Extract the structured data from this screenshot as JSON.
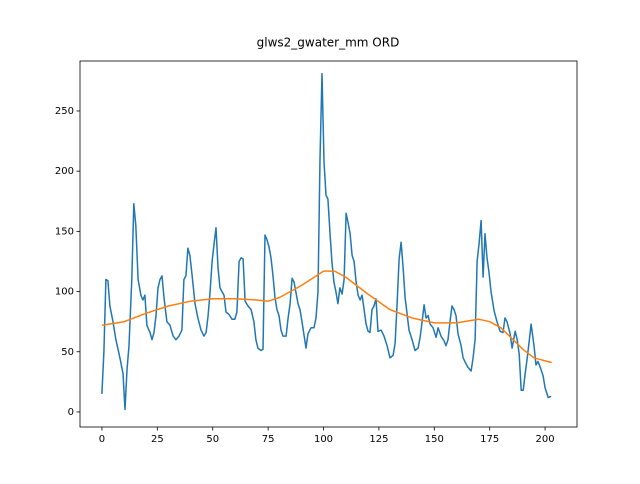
{
  "chart_data": {
    "type": "line",
    "title": "glws2_gwater_mm ORD",
    "xlim": [
      -9.9,
      214.4
    ],
    "ylim": [
      -12.5,
      291.5
    ],
    "xticks": [
      0,
      25,
      50,
      75,
      100,
      125,
      150,
      175,
      200
    ],
    "yticks": [
      0,
      50,
      100,
      150,
      200,
      250
    ],
    "series": [
      {
        "color": "#1f77b4",
        "x": [
          0,
          0.9,
          1.8,
          2.7,
          3.6,
          5.0,
          6.3,
          8.1,
          9.5,
          10.4,
          11.3,
          12.2,
          13.5,
          14.4,
          15.3,
          16.3,
          17.6,
          18.5,
          19.4,
          20.3,
          21.7,
          22.6,
          23.5,
          24.4,
          25.3,
          26.2,
          27.1,
          28.0,
          29.3,
          30.7,
          32.1,
          33.4,
          34.8,
          36.1,
          37.0,
          37.9,
          38.8,
          39.7,
          40.6,
          42.0,
          43.3,
          44.7,
          46.0,
          47.0,
          47.9,
          48.8,
          49.7,
          50.6,
          51.5,
          52.4,
          53.3,
          54.2,
          55.1,
          56.0,
          57.3,
          58.7,
          60.0,
          60.9,
          61.9,
          62.8,
          63.7,
          64.6,
          65.9,
          67.3,
          68.6,
          69.5,
          70.4,
          71.8,
          72.7,
          73.6,
          74.5,
          75.4,
          76.3,
          77.2,
          78.1,
          79.0,
          79.9,
          80.8,
          81.7,
          83.1,
          84.0,
          84.9,
          85.8,
          86.7,
          87.6,
          88.5,
          89.4,
          90.3,
          91.2,
          92.1,
          93.0,
          94.4,
          95.7,
          96.6,
          97.5,
          98.4,
          99.3,
          100.2,
          101.1,
          102.0,
          102.9,
          103.8,
          104.7,
          105.6,
          106.5,
          107.4,
          108.4,
          109.3,
          110.2,
          111.1,
          112.0,
          112.9,
          113.8,
          114.7,
          115.6,
          116.5,
          117.4,
          118.3,
          119.2,
          120.1,
          121.0,
          121.9,
          122.8,
          123.7,
          124.6,
          126.0,
          127.3,
          128.7,
          130.0,
          131.4,
          132.3,
          133.2,
          134.1,
          135.0,
          135.9,
          136.8,
          137.7,
          138.6,
          140.0,
          141.3,
          142.7,
          143.6,
          144.5,
          145.4,
          146.3,
          147.2,
          148.1,
          149.4,
          150.8,
          151.7,
          153.0,
          154.4,
          155.3,
          156.2,
          157.1,
          158.0,
          158.9,
          159.8,
          160.7,
          162.1,
          163.0,
          164.3,
          165.2,
          166.6,
          167.5,
          168.4,
          169.3,
          170.2,
          171.1,
          172.0,
          172.9,
          173.8,
          174.7,
          175.6,
          177.0,
          178.3,
          179.7,
          181.0,
          181.9,
          182.8,
          184.2,
          185.1,
          186.5,
          187.4,
          188.3,
          189.2,
          190.1,
          191.0,
          191.9,
          192.8,
          193.7,
          195.0,
          195.9,
          196.8,
          198.2,
          199.1,
          200.0,
          201.4,
          202.7
        ],
        "values": [
          15,
          50,
          110,
          109,
          88,
          75,
          60,
          45,
          32,
          2,
          35,
          55,
          110,
          173,
          155,
          110,
          97,
          93,
          97,
          72,
          66,
          60,
          66,
          80,
          103,
          110,
          113,
          95,
          75,
          72,
          63,
          60,
          63,
          68,
          110,
          113,
          136,
          130,
          115,
          90,
          78,
          68,
          63,
          66,
          80,
          100,
          125,
          140,
          153,
          120,
          103,
          100,
          97,
          83,
          81,
          77,
          77,
          83,
          125,
          128,
          127,
          92,
          88,
          85,
          75,
          60,
          53,
          51,
          52,
          147,
          143,
          137,
          128,
          113,
          95,
          85,
          80,
          68,
          63,
          63,
          78,
          90,
          111,
          108,
          99,
          90,
          85,
          75,
          64,
          53,
          65,
          70,
          70,
          78,
          100,
          210,
          281,
          208,
          180,
          177,
          150,
          125,
          108,
          100,
          90,
          103,
          98,
          110,
          165,
          157,
          148,
          130,
          125,
          108,
          97,
          93,
          97,
          85,
          73,
          67,
          66,
          85,
          88,
          94,
          67,
          68,
          63,
          55,
          45,
          47,
          57,
          90,
          127,
          141,
          120,
          95,
          82,
          68,
          60,
          51,
          53,
          62,
          75,
          89,
          78,
          80,
          73,
          70,
          62,
          70,
          63,
          59,
          55,
          60,
          75,
          88,
          85,
          80,
          65,
          55,
          45,
          40,
          37,
          34,
          45,
          60,
          125,
          140,
          159,
          112,
          148,
          128,
          116,
          100,
          84,
          75,
          67,
          66,
          78,
          75,
          65,
          53,
          67,
          60,
          48,
          18,
          18,
          32,
          44,
          58,
          73,
          55,
          39,
          42,
          35,
          30,
          20,
          12,
          13
        ]
      },
      {
        "color": "#ff7f0e",
        "x": [
          0,
          10,
          20,
          30,
          40,
          50,
          60,
          70,
          75,
          80,
          90,
          100,
          105,
          110,
          120,
          130,
          140,
          150,
          160,
          170,
          175,
          180,
          190,
          195,
          203
        ],
        "values": [
          72,
          75,
          82,
          88,
          92,
          94,
          94,
          93,
          92,
          95,
          105,
          117,
          117,
          112,
          98,
          85,
          78,
          74,
          74,
          77,
          75,
          70,
          52,
          45,
          41
        ]
      }
    ]
  }
}
